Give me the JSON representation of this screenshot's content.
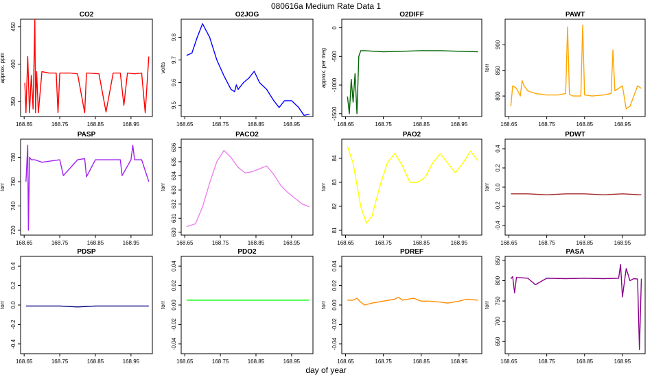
{
  "figure": {
    "title": "080616a   Medium Rate Data 1",
    "xlabel": "day of year"
  },
  "chart_data": [
    {
      "type": "line",
      "title": "CO2",
      "ylabel": "approx. ppm",
      "color": "#ff0000",
      "xlim": [
        168.64,
        169.01
      ],
      "ylim": [
        330,
        460
      ],
      "xticks": [
        168.65,
        168.75,
        168.85,
        168.95
      ],
      "yticks": [
        350,
        400,
        450
      ],
      "x": [
        168.652,
        168.655,
        168.66,
        168.665,
        168.67,
        168.675,
        168.68,
        168.682,
        168.685,
        168.69,
        168.7,
        168.72,
        168.74,
        168.745,
        168.75,
        168.78,
        168.8,
        168.82,
        168.825,
        168.83,
        168.86,
        168.88,
        168.9,
        168.92,
        168.93,
        168.94,
        168.96,
        168.98,
        168.99,
        169.0
      ],
      "values": [
        375,
        335,
        410,
        335,
        385,
        340,
        460,
        335,
        390,
        335,
        390,
        388,
        388,
        335,
        388,
        388,
        387,
        335,
        388,
        388,
        387,
        336,
        388,
        388,
        345,
        388,
        387,
        388,
        335,
        410
      ]
    },
    {
      "type": "line",
      "title": "O2JOG",
      "ylabel": "volts",
      "color": "#0000ff",
      "xlim": [
        168.64,
        169.01
      ],
      "ylim": [
        9.45,
        9.88
      ],
      "xticks": [
        168.65,
        168.75,
        168.85,
        168.95
      ],
      "yticks": [
        9.5,
        9.6,
        9.7,
        9.8
      ],
      "x": [
        168.655,
        168.67,
        168.685,
        168.7,
        168.72,
        168.74,
        168.76,
        168.78,
        168.79,
        168.795,
        168.8,
        168.815,
        168.83,
        168.845,
        168.86,
        168.88,
        168.9,
        168.915,
        168.93,
        168.95,
        168.97,
        168.985,
        169.0
      ],
      "values": [
        9.72,
        9.73,
        9.8,
        9.86,
        9.8,
        9.7,
        9.63,
        9.57,
        9.56,
        9.59,
        9.57,
        9.6,
        9.62,
        9.65,
        9.6,
        9.57,
        9.52,
        9.49,
        9.52,
        9.52,
        9.49,
        9.455,
        9.46
      ]
    },
    {
      "type": "line",
      "title": "O2DIFF",
      "ylabel": "approx. per meg",
      "color": "#006400",
      "xlim": [
        168.64,
        169.01
      ],
      "ylim": [
        -1550,
        150
      ],
      "xticks": [
        168.65,
        168.75,
        168.85,
        168.95
      ],
      "yticks": [
        -1500,
        -1000,
        -500,
        0
      ],
      "x": [
        168.655,
        168.66,
        168.665,
        168.67,
        168.675,
        168.68,
        168.685,
        168.69,
        168.7,
        168.75,
        168.8,
        168.85,
        168.9,
        168.95,
        169.0
      ],
      "values": [
        -1200,
        -1500,
        -900,
        -1300,
        -800,
        -1500,
        -500,
        -400,
        -400,
        -420,
        -410,
        -400,
        -400,
        -410,
        -420
      ]
    },
    {
      "type": "line",
      "title": "PAWT",
      "ylabel": "torr",
      "color": "#ffa500",
      "xlim": [
        168.64,
        169.01
      ],
      "ylim": [
        760,
        950
      ],
      "xticks": [
        168.65,
        168.75,
        168.85,
        168.95
      ],
      "yticks": [
        800,
        850,
        900
      ],
      "x": [
        168.655,
        168.66,
        168.67,
        168.68,
        168.685,
        168.69,
        168.7,
        168.72,
        168.75,
        168.78,
        168.8,
        168.805,
        168.81,
        168.82,
        168.84,
        168.845,
        168.85,
        168.87,
        168.9,
        168.92,
        168.925,
        168.93,
        168.95,
        168.96,
        168.97,
        168.99,
        169.0
      ],
      "values": [
        780,
        820,
        815,
        800,
        830,
        820,
        810,
        805,
        802,
        802,
        805,
        935,
        803,
        800,
        800,
        938,
        802,
        800,
        802,
        805,
        890,
        810,
        820,
        775,
        780,
        820,
        815
      ]
    },
    {
      "type": "line",
      "title": "PASP",
      "ylabel": "torr",
      "color": "#a020f0",
      "xlim": [
        168.64,
        169.01
      ],
      "ylim": [
        716,
        795
      ],
      "xticks": [
        168.65,
        168.75,
        168.85,
        168.95
      ],
      "yticks": [
        720,
        740,
        760,
        780
      ],
      "x": [
        168.655,
        168.66,
        168.662,
        168.665,
        168.67,
        168.68,
        168.7,
        168.75,
        168.76,
        168.8,
        168.82,
        168.825,
        168.85,
        168.9,
        168.92,
        168.925,
        168.95,
        168.955,
        168.96,
        168.98,
        169.0
      ],
      "values": [
        760,
        790,
        720,
        780,
        778,
        778,
        776,
        778,
        765,
        778,
        779,
        764,
        778,
        778,
        778,
        765,
        778,
        790,
        778,
        778,
        760
      ]
    },
    {
      "type": "line",
      "title": "PACO2",
      "ylabel": "torr",
      "color": "#ee82ee",
      "xlim": [
        168.64,
        169.01
      ],
      "ylim": [
        629.8,
        636.6
      ],
      "xticks": [
        168.65,
        168.75,
        168.85,
        168.95
      ],
      "yticks": [
        630,
        631,
        632,
        633,
        634,
        635,
        636
      ],
      "x": [
        168.655,
        168.68,
        168.7,
        168.72,
        168.74,
        168.76,
        168.78,
        168.8,
        168.82,
        168.84,
        168.86,
        168.88,
        168.9,
        168.92,
        168.94,
        168.96,
        168.98,
        169.0
      ],
      "values": [
        630.4,
        630.6,
        631.8,
        633.5,
        635.0,
        635.8,
        635.3,
        634.6,
        634.2,
        634.3,
        634.5,
        634.7,
        634.1,
        633.3,
        632.8,
        632.4,
        632.0,
        631.8
      ]
    },
    {
      "type": "line",
      "title": "PAO2",
      "ylabel": "torr",
      "color": "#ffff00",
      "xlim": [
        168.64,
        169.01
      ],
      "ylim": [
        80.8,
        84.8
      ],
      "xticks": [
        168.65,
        168.75,
        168.85,
        168.95
      ],
      "yticks": [
        81,
        82,
        83,
        84
      ],
      "x": [
        168.655,
        168.67,
        168.69,
        168.705,
        168.72,
        168.74,
        168.76,
        168.78,
        168.8,
        168.82,
        168.84,
        168.86,
        168.88,
        168.9,
        168.92,
        168.94,
        168.96,
        168.98,
        169.0
      ],
      "values": [
        84.5,
        83.8,
        82.0,
        81.3,
        81.6,
        82.8,
        83.8,
        84.2,
        83.7,
        83.0,
        83.0,
        83.2,
        83.8,
        84.2,
        83.8,
        83.4,
        83.8,
        84.3,
        83.9
      ]
    },
    {
      "type": "line",
      "title": "PDWT",
      "ylabel": "torr",
      "color": "#a52a2a",
      "xlim": [
        168.64,
        169.01
      ],
      "ylim": [
        -0.5,
        0.5
      ],
      "xticks": [
        168.65,
        168.75,
        168.85,
        168.95
      ],
      "yticks": [
        -0.4,
        -0.2,
        0.0,
        0.2,
        0.4
      ],
      "x": [
        168.655,
        168.7,
        168.75,
        168.8,
        168.85,
        168.9,
        168.95,
        169.0
      ],
      "values": [
        -0.07,
        -0.07,
        -0.08,
        -0.07,
        -0.07,
        -0.08,
        -0.07,
        -0.08
      ]
    },
    {
      "type": "line",
      "title": "PDSP",
      "ylabel": "torr",
      "color": "#000080",
      "xlim": [
        168.64,
        169.01
      ],
      "ylim": [
        -0.5,
        0.5
      ],
      "xticks": [
        168.65,
        168.75,
        168.85,
        168.95
      ],
      "yticks": [
        -0.4,
        -0.2,
        0.0,
        0.2,
        0.4
      ],
      "x": [
        168.655,
        168.7,
        168.75,
        168.8,
        168.85,
        168.9,
        168.95,
        169.0
      ],
      "values": [
        -0.01,
        -0.01,
        -0.01,
        -0.02,
        -0.01,
        -0.01,
        -0.01,
        -0.01
      ]
    },
    {
      "type": "line",
      "title": "PDO2",
      "ylabel": "torr",
      "color": "#00ff00",
      "xlim": [
        168.64,
        169.01
      ],
      "ylim": [
        -0.05,
        0.05
      ],
      "xticks": [
        168.65,
        168.75,
        168.85,
        168.95
      ],
      "yticks": [
        -0.04,
        -0.02,
        0.0,
        0.02,
        0.04
      ],
      "x": [
        168.655,
        168.7,
        168.75,
        168.8,
        168.85,
        168.9,
        168.95,
        169.0
      ],
      "values": [
        0.005,
        0.005,
        0.005,
        0.005,
        0.005,
        0.005,
        0.005,
        0.005
      ]
    },
    {
      "type": "line",
      "title": "PDREF",
      "ylabel": "torr",
      "color": "#ff8c00",
      "xlim": [
        168.64,
        169.01
      ],
      "ylim": [
        -0.05,
        0.05
      ],
      "xticks": [
        168.65,
        168.75,
        168.85,
        168.95
      ],
      "yticks": [
        -0.04,
        -0.02,
        0.0,
        0.02,
        0.04
      ],
      "x": [
        168.655,
        168.67,
        168.68,
        168.69,
        168.7,
        168.72,
        168.75,
        168.78,
        168.79,
        168.8,
        168.83,
        168.85,
        168.87,
        168.9,
        168.92,
        168.95,
        168.97,
        169.0
      ],
      "values": [
        0.005,
        0.005,
        0.007,
        0.003,
        0.0,
        0.002,
        0.004,
        0.006,
        0.008,
        0.005,
        0.007,
        0.004,
        0.004,
        0.003,
        0.002,
        0.004,
        0.006,
        0.005
      ]
    },
    {
      "type": "line",
      "title": "PASA",
      "ylabel": "torr",
      "color": "#8b008b",
      "xlim": [
        168.64,
        169.01
      ],
      "ylim": [
        620,
        860
      ],
      "xticks": [
        168.65,
        168.75,
        168.85,
        168.95
      ],
      "yticks": [
        650,
        700,
        750,
        800,
        850
      ],
      "x": [
        168.655,
        168.66,
        168.665,
        168.67,
        168.7,
        168.72,
        168.75,
        168.8,
        168.85,
        168.9,
        168.94,
        168.945,
        168.95,
        168.96,
        168.97,
        168.98,
        168.99,
        168.995,
        169.0
      ],
      "values": [
        805,
        810,
        770,
        808,
        806,
        790,
        806,
        805,
        806,
        805,
        806,
        840,
        760,
        830,
        800,
        805,
        804,
        630,
        805
      ]
    }
  ]
}
